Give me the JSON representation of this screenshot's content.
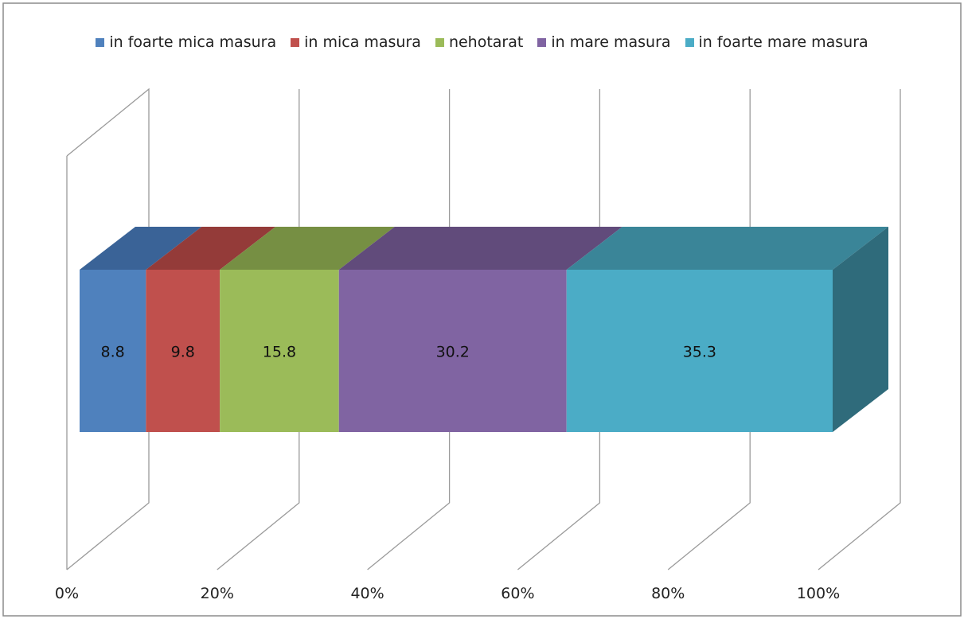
{
  "chart_data": {
    "type": "bar",
    "orientation": "horizontal",
    "stacked": true,
    "stack_mode": "percent",
    "three_d": true,
    "title": "",
    "xlabel": "",
    "ylabel": "",
    "xlim": [
      0,
      100
    ],
    "x_ticks": [
      "0%",
      "20%",
      "40%",
      "60%",
      "80%",
      "100%"
    ],
    "grid": true,
    "legend_position": "top",
    "categories": [
      ""
    ],
    "series": [
      {
        "name": "in foarte mica masura",
        "values": [
          8.8
        ],
        "label": "8.8",
        "color": "#4f81bd",
        "top_color": "#3a6397",
        "side_color": "#355a8a"
      },
      {
        "name": "in mica masura",
        "values": [
          9.8
        ],
        "label": "9.8",
        "color": "#c0504d",
        "top_color": "#943b39",
        "side_color": "#8a3735"
      },
      {
        "name": "nehotarat",
        "values": [
          15.8
        ],
        "label": "15.8",
        "color": "#9bbb59",
        "top_color": "#768f43",
        "side_color": "#6e853e"
      },
      {
        "name": "in mare masura",
        "values": [
          30.2
        ],
        "label": "30.2",
        "color": "#8064a2",
        "top_color": "#614b7b",
        "side_color": "#5a4672"
      },
      {
        "name": "in foarte mare masura",
        "values": [
          35.3
        ],
        "label": "35.3",
        "color": "#4bacc6",
        "top_color": "#3a8598",
        "side_color": "#2f6b7b"
      }
    ]
  }
}
